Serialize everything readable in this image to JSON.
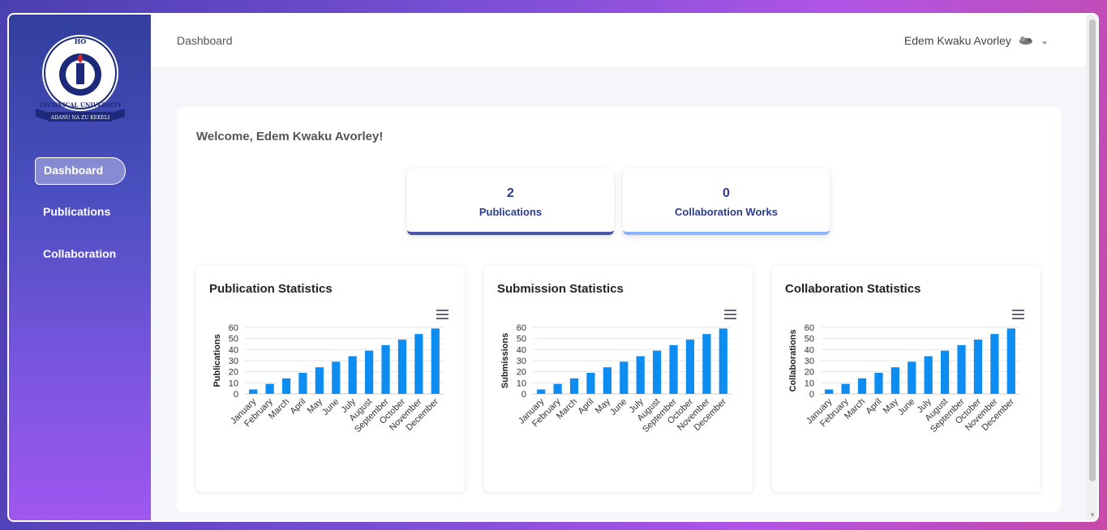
{
  "sidebar": {
    "logo": {
      "top_text": "HO",
      "ring_text": "TECHNICAL UNIVERSITY",
      "motto": "ADANU NA ZU KEKELI"
    },
    "items": [
      {
        "label": "Dashboard",
        "active": true
      },
      {
        "label": "Publications",
        "active": false
      },
      {
        "label": "Collaboration",
        "active": false
      }
    ]
  },
  "topbar": {
    "breadcrumb": "Dashboard",
    "user_name": "Edem Kwaku Avorley"
  },
  "main": {
    "welcome": "Welcome, Edem Kwaku Avorley!",
    "stats": [
      {
        "value": "2",
        "label": "Publications"
      },
      {
        "value": "0",
        "label": "Collaboration Works"
      }
    ]
  },
  "colors": {
    "accent": "#2c3b8f",
    "bar": "#0d8cf2"
  },
  "chart_data": [
    {
      "type": "bar",
      "title": "Publication Statistics",
      "ylabel": "Publications",
      "xlabel": "",
      "categories": [
        "January",
        "February",
        "March",
        "April",
        "May",
        "June",
        "July",
        "August",
        "September",
        "October",
        "November",
        "December"
      ],
      "values": [
        4,
        9,
        14,
        19,
        24,
        29,
        34,
        39,
        44,
        49,
        54,
        59
      ],
      "yticks": [
        "0",
        "10",
        "20",
        "30",
        "40",
        "50",
        "60"
      ],
      "ylim": [
        0,
        60
      ]
    },
    {
      "type": "bar",
      "title": "Submission Statistics",
      "ylabel": "Submissions",
      "xlabel": "",
      "categories": [
        "January",
        "February",
        "March",
        "April",
        "May",
        "June",
        "July",
        "August",
        "September",
        "October",
        "November",
        "December"
      ],
      "values": [
        4,
        9,
        14,
        19,
        24,
        29,
        34,
        39,
        44,
        49,
        54,
        59
      ],
      "yticks": [
        "0",
        "10",
        "20",
        "30",
        "40",
        "50",
        "60"
      ],
      "ylim": [
        0,
        60
      ]
    },
    {
      "type": "bar",
      "title": "Collaboration Statistics",
      "ylabel": "Collaborations",
      "xlabel": "",
      "categories": [
        "January",
        "February",
        "March",
        "April",
        "May",
        "June",
        "July",
        "August",
        "September",
        "October",
        "November",
        "December"
      ],
      "values": [
        4,
        9,
        14,
        19,
        24,
        29,
        34,
        39,
        44,
        49,
        54,
        59
      ],
      "yticks": [
        "0",
        "10",
        "20",
        "30",
        "40",
        "50",
        "60"
      ],
      "ylim": [
        0,
        60
      ]
    }
  ]
}
